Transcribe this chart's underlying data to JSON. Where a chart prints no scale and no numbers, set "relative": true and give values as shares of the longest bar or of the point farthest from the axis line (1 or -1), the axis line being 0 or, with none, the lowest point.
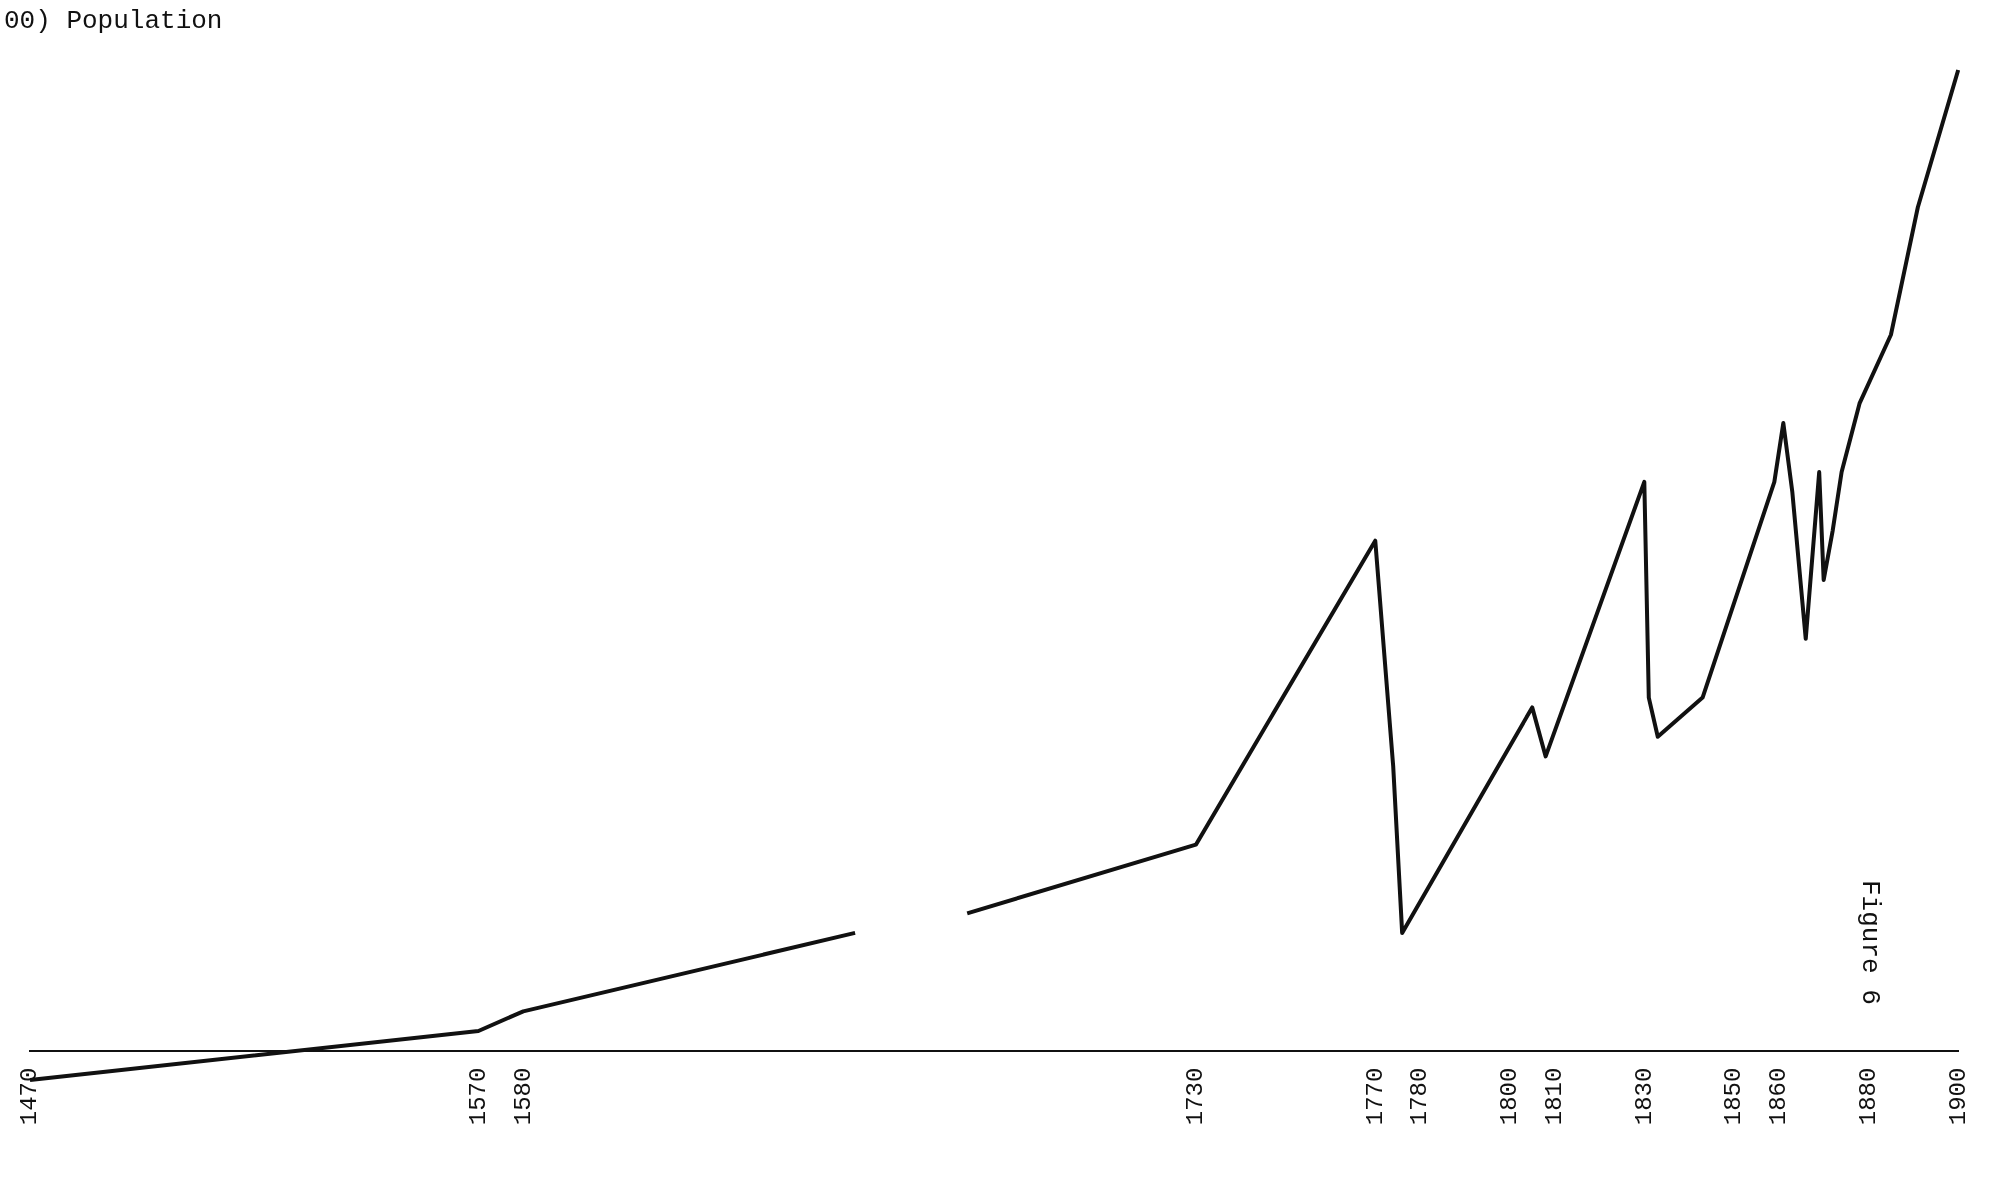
{
  "chart_data": {
    "type": "line",
    "ylabel": "00) Population",
    "relative": true,
    "color": "#111111",
    "marker": "none",
    "x": [
      1470,
      1570,
      1580,
      1654,
      1665,
      1679,
      1730,
      1770,
      1774,
      1776,
      1805,
      1808,
      1830,
      1831,
      1833,
      1843,
      1859,
      1861,
      1863,
      1866,
      1869,
      1870,
      1872,
      1874,
      1878,
      1885,
      1891,
      1900
    ],
    "values": [
      -0.03,
      0.02,
      0.04,
      0.12,
      null,
      0.14,
      0.21,
      0.52,
      0.29,
      0.12,
      0.35,
      0.3,
      0.58,
      0.36,
      0.32,
      0.36,
      0.58,
      0.64,
      0.57,
      0.42,
      0.59,
      0.48,
      0.53,
      0.59,
      0.66,
      0.73,
      0.86,
      1
    ],
    "xlim": [
      1470,
      1900
    ],
    "xticks": [
      1470,
      1570,
      1580,
      1730,
      1770,
      1780,
      1800,
      1810,
      1830,
      1850,
      1860,
      1880,
      1900
    ],
    "annotations": [
      "Figure 6"
    ]
  }
}
